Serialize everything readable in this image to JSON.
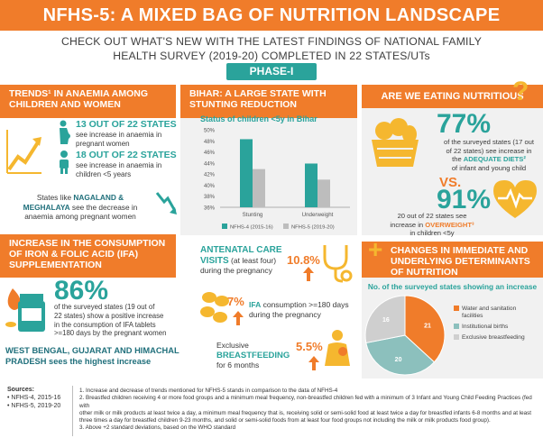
{
  "title": "NFHS-5: A MIXED BAG OF NUTRITION LANDSCAPE",
  "subtitle_line1": "CHECK OUT WHAT'S NEW WITH THE LATEST FINDINGS OF NATIONAL FAMILY",
  "subtitle_line2": "HEALTH SURVEY (2019-20) COMPLETED IN 22 STATES/UTs",
  "phase": "PHASE-I",
  "anaemia": {
    "heading_line1": "TRENDS¹ IN ANAEMIA AMONG",
    "heading_line2": "CHILDREN AND WOMEN",
    "stat1_big": "13 OUT OF 22 STATES",
    "stat1_line1": "see increase in anaemia in",
    "stat1_line2": "pregnant women",
    "stat2_big": "18 OUT OF 22 STATES",
    "stat2_line1": "see increase in anaemia in",
    "stat2_line2": "children <5 years",
    "note_pre": "States like ",
    "note_states1": "NAGALAND &",
    "note_states2": "MEGHALAYA",
    "note_mid": " see the decrease in",
    "note_line3": "anaemia among pregnant women"
  },
  "bihar": {
    "heading_line1": "BIHAR: A LARGE STATE WITH",
    "heading_line2": "STUNTING REDUCTION"
  },
  "nutritious": {
    "heading": "ARE WE EATING NUTRITIOUS",
    "question_mark": "?",
    "pct1": "77%",
    "pct1_line1": "of the surveyed states (17 out",
    "pct1_line2_pre": "of 22 states) see increase in",
    "pct1_line2_hl": "the ",
    "pct1_highlight": "ADEQUATE DIETS²",
    "pct1_line3": "of infant and young child",
    "vs": "VS.",
    "pct2": "91%",
    "pct2_line1": "20 out of 22 states see",
    "pct2_line2_pre": "increase in ",
    "pct2_highlight": "OVERWEIGHT³",
    "pct2_line3": "in children <5y"
  },
  "ifa": {
    "heading_line1": "INCREASE IN THE CONSUMPTION",
    "heading_line2": "OF IRON & FOLIC ACID (IFA)",
    "heading_line3": "SUPPLEMENTATION",
    "pct": "86%",
    "line1": "of the surveyed states (19 out of",
    "line2": "22 states) show a positive increase",
    "line3": "in the consumption of IFA tablets",
    "line4": ">=180 days by the pregnant women",
    "highlight_line1": "WEST BENGAL, GUJARAT AND HIMACHAL",
    "highlight_line2_bold": "PRADESH",
    "highlight_line2_rest": " sees the highest increase"
  },
  "care": {
    "anc_line1": "ANTENATAL CARE",
    "anc_line2_bold": "VISITS",
    "anc_line2_rest": " (at least four)",
    "anc_line3": "during the pregnancy",
    "anc_value": "10.8%",
    "ifa_value": "7%",
    "ifa_line1_bold": "IFA",
    "ifa_line1_rest": " consumption >=180 days",
    "ifa_line2": "during the pregnancy",
    "bf_line1": "Exclusive",
    "bf_line2": "BREASTFEEDING",
    "bf_line3": "for 6 months",
    "bf_value": "5.5%"
  },
  "determinants": {
    "plus": "+",
    "heading_line1": "CHANGES IN  IMMEDIATE AND",
    "heading_line2": "UNDERLYING DETERMINANTS",
    "heading_line3": "OF NUTRITION",
    "pie_title": "No. of the surveyed states showing an increase"
  },
  "sources": {
    "label": "Sources:",
    "item1": "NFHS-4, 2015-16",
    "item2": "NFHS-5, 2019-20"
  },
  "notes": {
    "n1": "1. Increase and decrease of trends mentioned for NFHS-5 stands in comparison to the data of NFHS-4",
    "n2a": "2. Breastfed children receiving 4 or more food groups and a minimum meal frequency, non-breastfed children fed with a minimum of 3 Infant and Young Child Feeding Practices (fed with",
    "n2b": "other milk or milk products at least twice a day, a minimum meal frequency that is, receiving solid or semi-solid food at least twice a day for breastfed infants 6-8 months and at least",
    "n2c": "three times a day for breastfed children 9-23 months, and solid or semi-solid foods from at least four food groups not including the milk or milk products food group).",
    "n3": "3. Above +2 standard deviations, based on the WHO standard"
  },
  "colors": {
    "orange": "#f07c2a",
    "teal": "#2aa39b",
    "gray_bar": "#bdbdbd",
    "pie_water": "#f07c2a",
    "pie_births": "#8cc0bd",
    "pie_breastfeeding": "#cfcfcf"
  },
  "chart_data": [
    {
      "type": "bar",
      "title": "Status of children <5y in Bihar",
      "categories": [
        "Stunting",
        "Underweight"
      ],
      "series": [
        {
          "name": "NFHS-4 (2015-16)",
          "values": [
            48.3,
            43.9
          ]
        },
        {
          "name": "NFHS-5 (2019-20)",
          "values": [
            42.9,
            41.0
          ]
        }
      ],
      "ylim": [
        36,
        50
      ],
      "y_ticks": [
        "50%",
        "48%",
        "46%",
        "44%",
        "42%",
        "40%",
        "38%",
        "36%"
      ],
      "y_tick_values": [
        50,
        48,
        46,
        44,
        42,
        40,
        38,
        36
      ],
      "legend": "bottom",
      "grid": false
    },
    {
      "type": "pie",
      "title": "No. of the surveyed states showing an increase",
      "labels": [
        "Water and sanitation facilities",
        "Institutional births",
        "Exclusive breastfeeding"
      ],
      "values": [
        21,
        20,
        16
      ],
      "value_labels": [
        "21",
        "20",
        "16"
      ],
      "legend": "right"
    }
  ]
}
